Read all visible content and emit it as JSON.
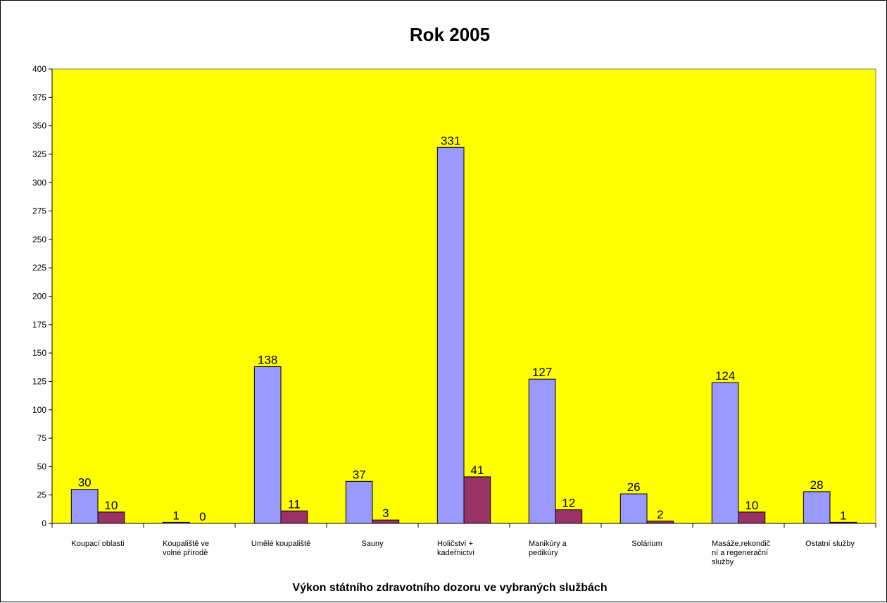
{
  "chart_data": {
    "type": "bar",
    "title": "Rok 2005",
    "xlabel": "Výkon státního zdravotního dozoru ve vybraných službách",
    "ylabel": "",
    "ylim": [
      0,
      400
    ],
    "ytick_step": 25,
    "grid": false,
    "legend": "none",
    "plot_background": "#ffff00",
    "categories": [
      [
        "Koupací oblasti"
      ],
      [
        "Koupaliště ve",
        "volné přírodě"
      ],
      [
        "Umělé koupaliště"
      ],
      [
        "Sauny"
      ],
      [
        "Holičství +",
        "kadeřnictví"
      ],
      [
        "Manikúry a",
        "pedikúry"
      ],
      [
        "Solárium"
      ],
      [
        "Masáže,rekondič",
        "ní a regenerační",
        "služby"
      ],
      [
        "Ostatní služby"
      ]
    ],
    "series": [
      {
        "color": "#9999ff",
        "values": [
          30,
          1,
          138,
          37,
          331,
          127,
          26,
          124,
          28
        ]
      },
      {
        "color": "#993366",
        "values": [
          10,
          0,
          11,
          3,
          41,
          12,
          2,
          10,
          1
        ]
      }
    ]
  }
}
